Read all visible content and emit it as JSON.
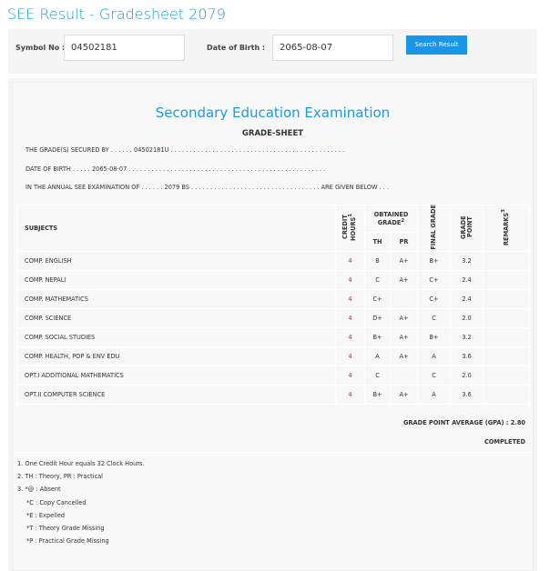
{
  "page_title": "SEE Result - Gradesheet 2079",
  "search": {
    "symbol_label": "Symbol No :",
    "symbol_value": "04502181",
    "dob_label": "Date of Birth :",
    "dob_value": "2065-08-07",
    "button": "Search Result"
  },
  "sheet": {
    "heading": "Secondary Education Examination",
    "subheading": "GRADE-SHEET",
    "line1": "THE GRADE(S) SECURED BY . . . . . . 04502181U . . . . . . . . . . . . . . . . . . . . . . . . . . . . . . . . . . . . . . . . . . . . . .",
    "line2": "DATE OF BIRTH . . . . . 2065-08-07 . . . . . . . . . . . . . . . . . . . . . . . . . . . . . . . . . . . . . . . . . . . . . . . . . . . .",
    "line3": "IN THE ANNUAL SEE EXAMINATION OF . . . . . . 2079 BS . . . . . . . . . . . . . . . . . . . . . . . . . . . . . . . . . . ARE GIVEN BELOW . . .",
    "headers": {
      "subjects": "SUBJECTS",
      "credit": "CREDIT HOURS",
      "credit_sup": "1",
      "obtained": "OBTAINED GRADE",
      "obtained_sup": "2",
      "th": "TH",
      "pr": "PR",
      "final": "FINAL GRADE",
      "gp": "GRADE POINT",
      "remarks": "REMARKS",
      "remarks_sup": "3"
    },
    "rows": [
      {
        "subject": "COMP. ENGLISH",
        "credit": "4",
        "th": "B",
        "pr": "A+",
        "final": "B+",
        "gp": "3.2",
        "remarks": ""
      },
      {
        "subject": "COMP. NEPALI",
        "credit": "4",
        "th": "C",
        "pr": "A+",
        "final": "C+",
        "gp": "2.4",
        "remarks": ""
      },
      {
        "subject": "COMP. MATHEMATICS",
        "credit": "4",
        "th": "C+",
        "pr": "",
        "final": "C+",
        "gp": "2.4",
        "remarks": ""
      },
      {
        "subject": "COMP. SCIENCE",
        "credit": "4",
        "th": "D+",
        "pr": "A+",
        "final": "C",
        "gp": "2.0",
        "remarks": ""
      },
      {
        "subject": "COMP. SOCIAL STUDIES",
        "credit": "4",
        "th": "B+",
        "pr": "A+",
        "final": "B+",
        "gp": "3.2",
        "remarks": ""
      },
      {
        "subject": "COMP. HEALTH, POP & ENV EDU",
        "credit": "4",
        "th": "A",
        "pr": "A+",
        "final": "A",
        "gp": "3.6",
        "remarks": ""
      },
      {
        "subject": "OPT.I ADDITIONAL MATHEMATICS",
        "credit": "4",
        "th": "C",
        "pr": "",
        "final": "C",
        "gp": "2.0",
        "remarks": ""
      },
      {
        "subject": "OPT.II COMPUTER SCIENCE",
        "credit": "4",
        "th": "B+",
        "pr": "A+",
        "final": "A",
        "gp": "3.6",
        "remarks": ""
      }
    ],
    "gpa": "GRADE POINT AVERAGE (GPA) : 2.80",
    "status": "COMPLETED",
    "notes": [
      "1. One Credit Hour equals 32 Clock Hours.",
      "2. TH : Theory, PR : Practical",
      "3. *@ : Absent",
      "*C : Copy Cancelled",
      "*E : Expelled",
      "*T : Theory Grade Missing",
      "*P : Practical Grade Missing"
    ]
  },
  "colors": {
    "accent": "#1a9be0",
    "button": "#1896ea",
    "credit": "#b03030"
  }
}
